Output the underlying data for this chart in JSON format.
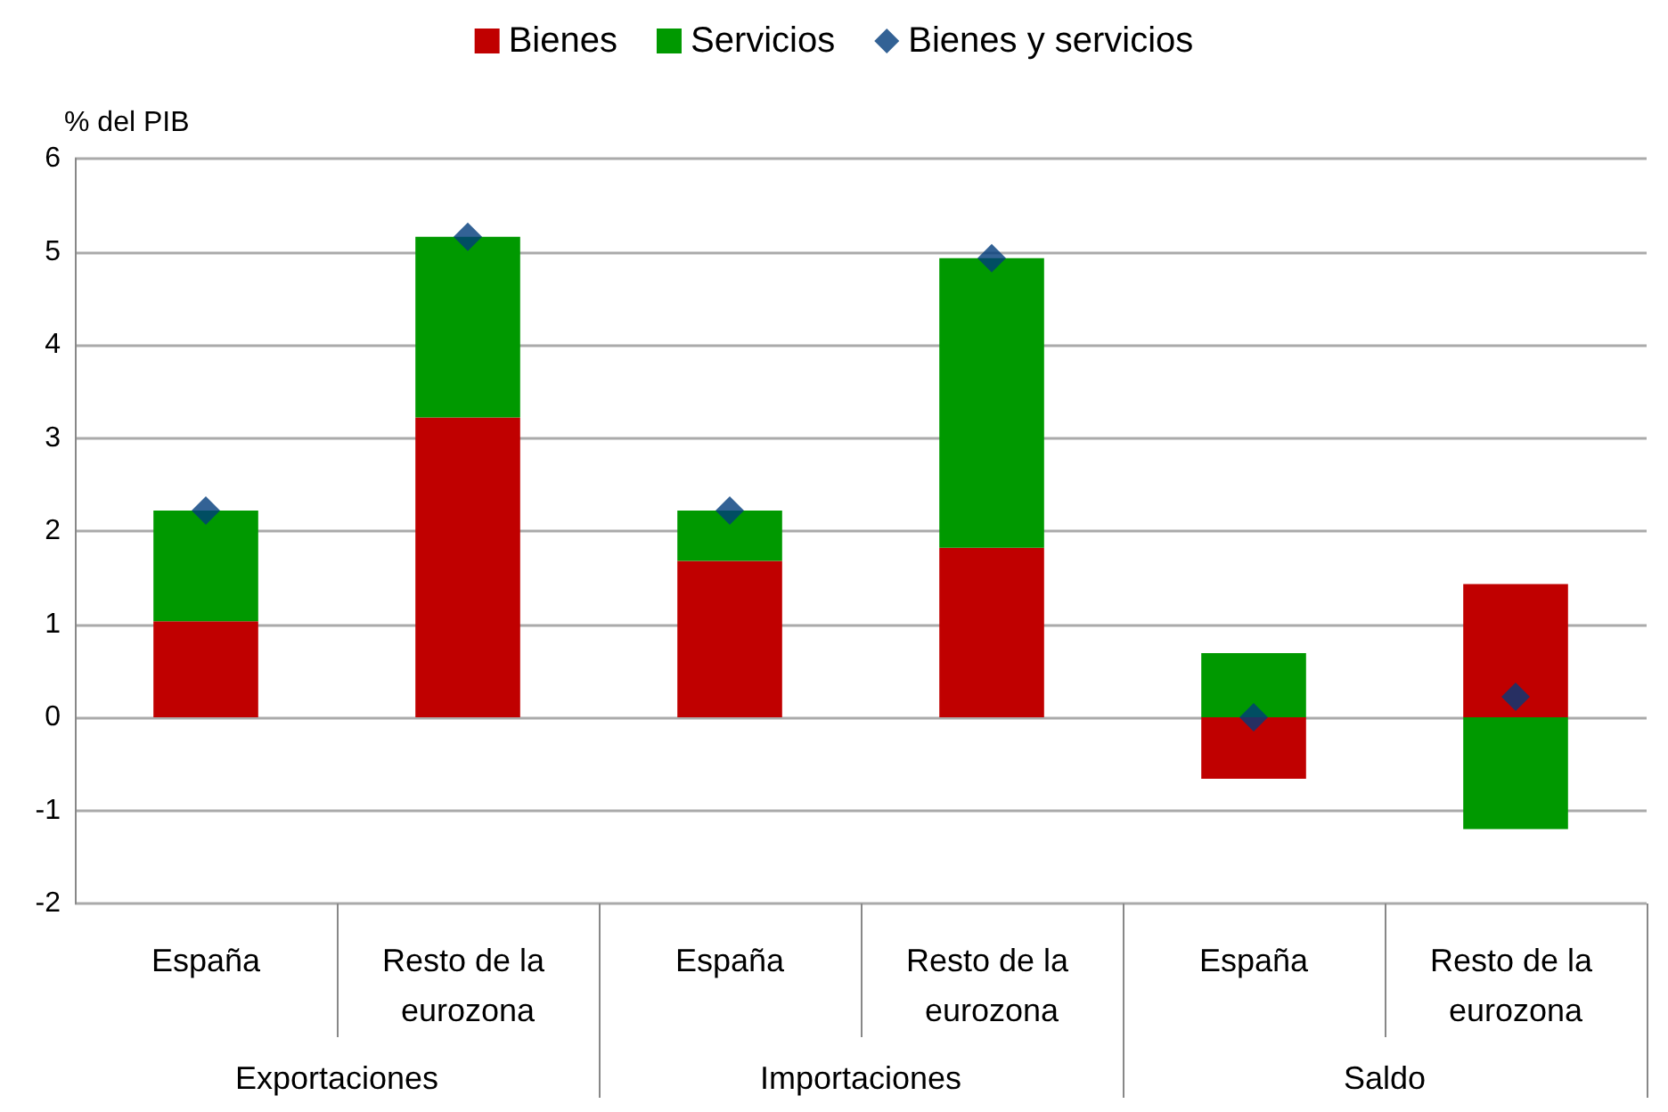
{
  "chart_data": {
    "type": "bar",
    "stacked": true,
    "ylabel": "% del PIB",
    "categories": [
      "España",
      "Resto de la eurozona",
      "España",
      "Resto de la eurozona",
      "España",
      "Resto de la eurozona"
    ],
    "annotations": [
      "Exportaciones",
      "Importaciones",
      "Saldo"
    ],
    "series": [
      {
        "name": "Bienes",
        "color": "#c00000",
        "values": [
          1.03,
          3.22,
          1.68,
          1.82,
          -0.66,
          1.43
        ]
      },
      {
        "name": "Servicios",
        "color": "#009900",
        "values": [
          1.19,
          1.94,
          0.54,
          3.11,
          0.69,
          -1.2
        ]
      },
      {
        "name": "Bienes y servicios",
        "type": "scatter",
        "marker": "diamond",
        "color": "#003b7a",
        "values": [
          2.22,
          5.16,
          2.22,
          4.93,
          0,
          0.22
        ]
      }
    ],
    "ylim": [
      -2,
      6
    ],
    "yticks": [
      -2,
      -1,
      0,
      1,
      2,
      3,
      4,
      5,
      6
    ],
    "grid": "y",
    "legend": "top"
  }
}
